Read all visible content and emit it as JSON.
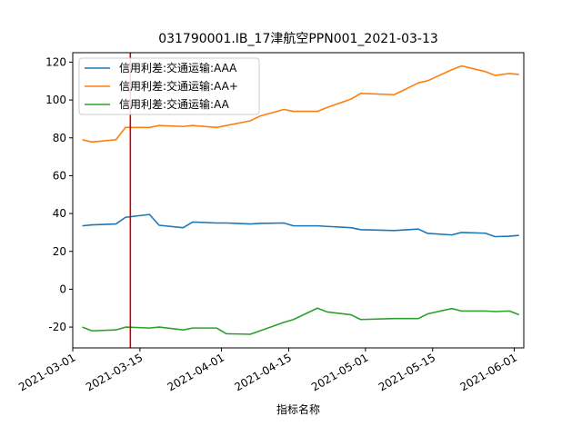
{
  "chart_data": {
    "type": "line",
    "title": "031790001.IB_17津航空PPN001_2021-03-13",
    "xlabel": "指标名称",
    "ylabel": "",
    "xlim": [
      "2021-03-01",
      "2021-06-03"
    ],
    "ylim": [
      -31,
      125
    ],
    "x_ticks": [
      "2021-03-01",
      "2021-03-15",
      "2021-04-01",
      "2021-04-15",
      "2021-05-01",
      "2021-05-15",
      "2021-06-01"
    ],
    "y_ticks": [
      -20,
      0,
      20,
      40,
      60,
      80,
      100,
      120
    ],
    "legend_position": "top-left",
    "grid": false,
    "vline": {
      "x": "2021-03-13",
      "color": "#cc0000"
    },
    "x": [
      "2021-03-03",
      "2021-03-05",
      "2021-03-10",
      "2021-03-12",
      "2021-03-17",
      "2021-03-19",
      "2021-03-24",
      "2021-03-26",
      "2021-03-31",
      "2021-04-02",
      "2021-04-07",
      "2021-04-09",
      "2021-04-14",
      "2021-04-16",
      "2021-04-21",
      "2021-04-23",
      "2021-04-28",
      "2021-04-30",
      "2021-05-07",
      "2021-05-12",
      "2021-05-14",
      "2021-05-19",
      "2021-05-21",
      "2021-05-26",
      "2021-05-28",
      "2021-05-31",
      "2021-06-02"
    ],
    "series": [
      {
        "name": "信用利差:交通运输:AAA",
        "color": "#1f77b4",
        "values": [
          33.5,
          34,
          34.5,
          38,
          39.5,
          33.8,
          32.5,
          35.5,
          35,
          35,
          34.5,
          34.8,
          35,
          33.5,
          33.5,
          33.2,
          32.5,
          31.5,
          31,
          31.8,
          29.5,
          28.7,
          30,
          29.6,
          27.8,
          28,
          28.5
        ]
      },
      {
        "name": "信用利差:交通运输:AA+",
        "color": "#ff7f0e",
        "values": [
          79,
          77.8,
          79,
          85.5,
          85.5,
          86.5,
          86,
          86.5,
          85.5,
          86.5,
          89,
          91.5,
          95,
          94,
          94,
          96,
          100.5,
          103.5,
          102.8,
          109,
          110.2,
          116,
          118,
          115,
          113,
          114,
          113.5
        ]
      },
      {
        "name": "信用利差:交通运输:AA",
        "color": "#2ca02c",
        "values": [
          -20,
          -22,
          -21.5,
          -20,
          -20.5,
          -20,
          -21.5,
          -20.5,
          -20.5,
          -23.5,
          -23.8,
          -22,
          -17.5,
          -16,
          -10,
          -12,
          -13.5,
          -16,
          -15.5,
          -15.5,
          -13,
          -10.2,
          -11.5,
          -11.5,
          -11.8,
          -11.5,
          -13.5
        ]
      }
    ]
  }
}
